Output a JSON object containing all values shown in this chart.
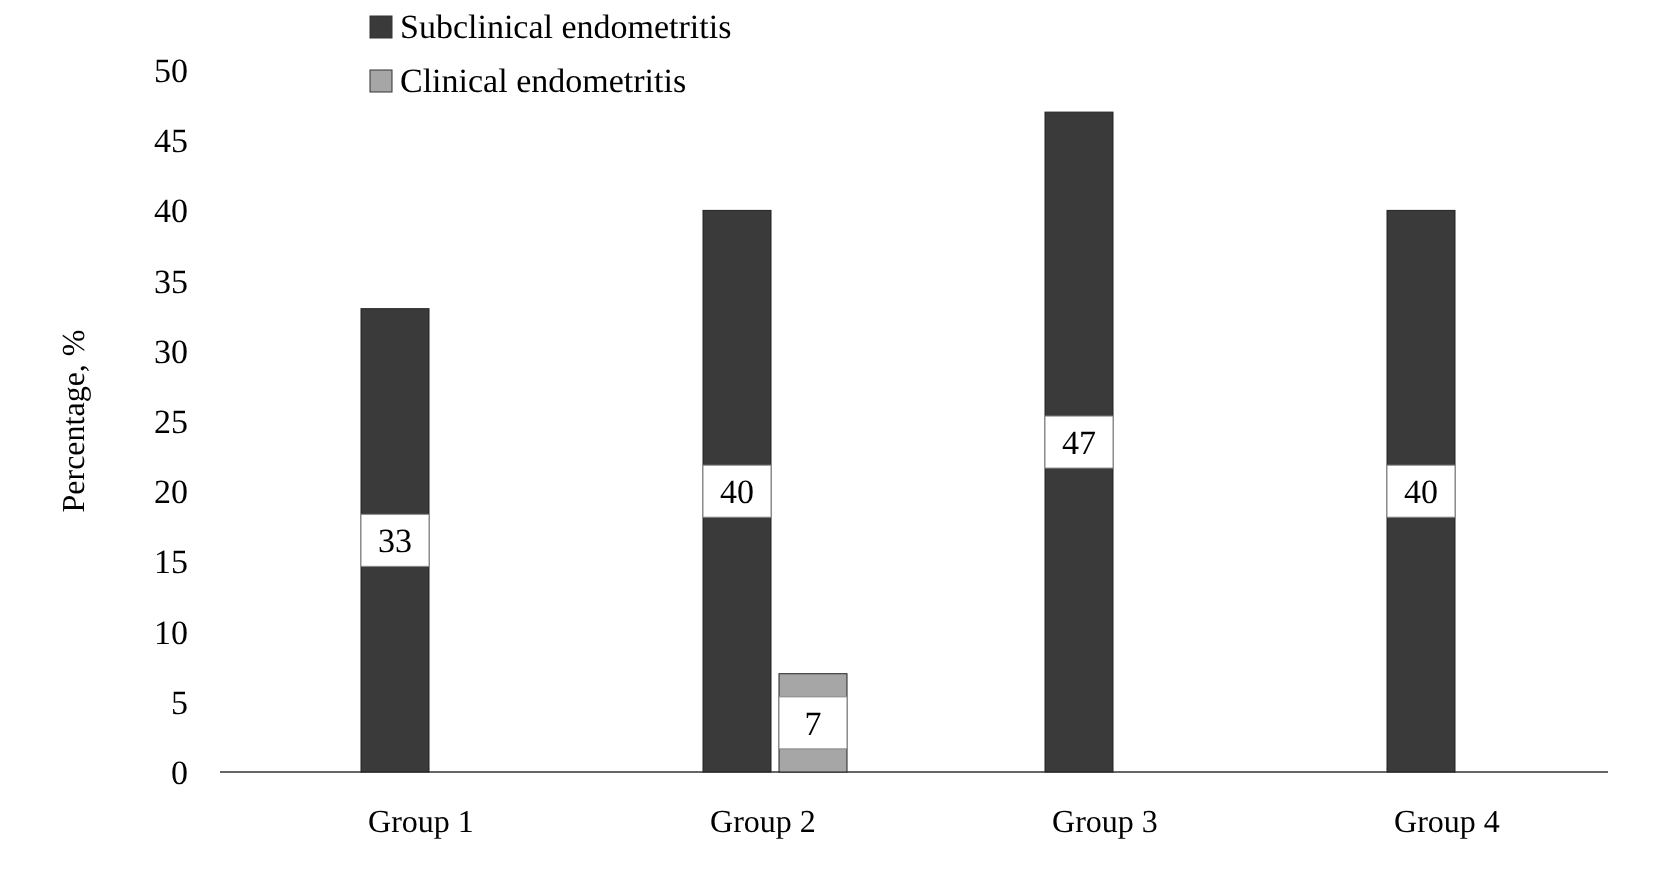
{
  "chart_data": {
    "type": "bar",
    "ylabel": "Percentage, %",
    "categories": [
      "Group 1",
      "Group 2",
      "Group 3",
      "Group 4"
    ],
    "series": [
      {
        "name": "Subclinical endometritis",
        "color": "#3a3a3a",
        "values": [
          33,
          40,
          47,
          40
        ]
      },
      {
        "name": "Clinical endometritis",
        "color": "#a6a6a6",
        "values": [
          null,
          7,
          null,
          null
        ]
      }
    ],
    "ylim": [
      0,
      50
    ],
    "yticks": [
      0,
      5,
      10,
      15,
      20,
      25,
      30,
      35,
      40,
      45,
      50
    ],
    "data_labels": true,
    "legend": "top",
    "grid": false
  }
}
